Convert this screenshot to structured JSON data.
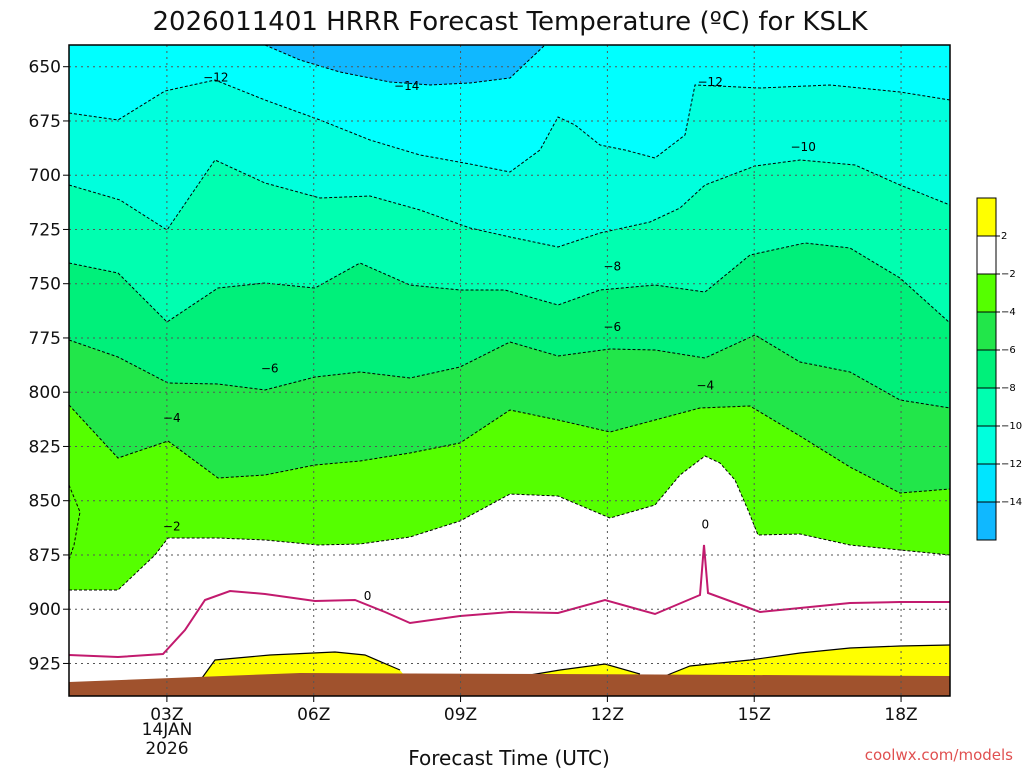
{
  "chart_data": {
    "type": "contour",
    "title": "2026011401 HRRR Forecast Temperature (ºC) for KSLK",
    "xlabel": "Forecast Time (UTC)",
    "ylabel": "",
    "x_ticks": [
      "03Z",
      "06Z",
      "09Z",
      "12Z",
      "15Z",
      "18Z"
    ],
    "x_tick_hours": [
      3,
      6,
      9,
      12,
      15,
      18
    ],
    "x_date_label": [
      "14JAN",
      "2026"
    ],
    "xlim_hours": [
      1,
      19
    ],
    "y_ticks": [
      650,
      675,
      700,
      725,
      750,
      775,
      800,
      825,
      850,
      875,
      900,
      925
    ],
    "ylim_hpa": [
      640,
      940
    ],
    "y_axis_inverted": true,
    "grid": true,
    "contour_labels": [
      {
        "value": "-14",
        "hour": 7.9,
        "hpa": 659
      },
      {
        "value": "-12",
        "hour": 4.0,
        "hpa": 655
      },
      {
        "value": "-12",
        "hour": 14.1,
        "hpa": 657
      },
      {
        "value": "-10",
        "hour": 16.0,
        "hpa": 687
      },
      {
        "value": "-8",
        "hour": 12.1,
        "hpa": 742
      },
      {
        "value": "-6",
        "hour": 5.1,
        "hpa": 789
      },
      {
        "value": "-6",
        "hour": 12.1,
        "hpa": 770
      },
      {
        "value": "-4",
        "hour": 3.1,
        "hpa": 812
      },
      {
        "value": "-4",
        "hour": 14.0,
        "hpa": 797
      },
      {
        "value": "-2",
        "hour": 3.1,
        "hpa": 862
      },
      {
        "value": "0",
        "hour": 7.1,
        "hpa": 894
      },
      {
        "value": "0",
        "hour": 14.0,
        "hpa": 861
      }
    ],
    "colorbar": {
      "labels": [
        "2",
        "-2",
        "-4",
        "-6",
        "-8",
        "-10",
        "-12",
        "-14"
      ],
      "colors": [
        "#ffff00",
        "#ffffff",
        "#55ff00",
        "#22e64a",
        "#00f07a",
        "#00ffb0",
        "#00ffdd",
        "#00e5ff",
        "#10b8ff"
      ]
    }
  },
  "credit": "coolwx.com/models"
}
